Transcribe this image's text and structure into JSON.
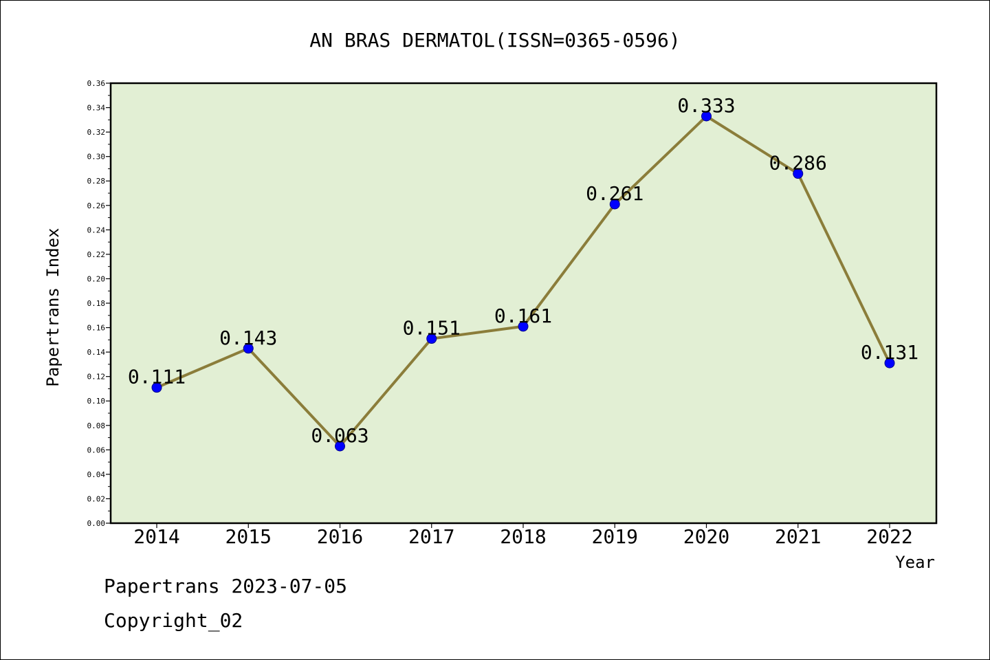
{
  "chart_data": {
    "type": "line",
    "title": "AN BRAS DERMATOL(ISSN=0365-0596)",
    "xlabel": "Year",
    "ylabel": "Papertrans Index",
    "categories": [
      "2014",
      "2015",
      "2016",
      "2017",
      "2018",
      "2019",
      "2020",
      "2021",
      "2022"
    ],
    "series": [
      {
        "values": [
          0.111,
          0.143,
          0.063,
          0.151,
          0.161,
          0.261,
          0.333,
          0.286,
          0.131
        ],
        "data_labels": [
          "0.111",
          "0.143",
          "0.063",
          "0.151",
          "0.161",
          "0.261",
          "0.333",
          "0.286",
          "0.131"
        ]
      }
    ],
    "ylim": [
      0,
      0.36
    ],
    "yticks": [
      "0.00",
      "0.02",
      "0.04",
      "0.06",
      "0.08",
      "0.10",
      "0.12",
      "0.14",
      "0.16",
      "0.18",
      "0.20",
      "0.22",
      "0.24",
      "0.26",
      "0.28",
      "0.30",
      "0.32",
      "0.34",
      "0.36"
    ],
    "grid": false,
    "legend": "none",
    "colors": {
      "plot_background": "#e2efd4",
      "line": "#8b7d3a",
      "marker": "#0000ff"
    }
  },
  "footer": {
    "source": "Papertrans 2023-07-05",
    "copyright": "Copyright_02"
  }
}
